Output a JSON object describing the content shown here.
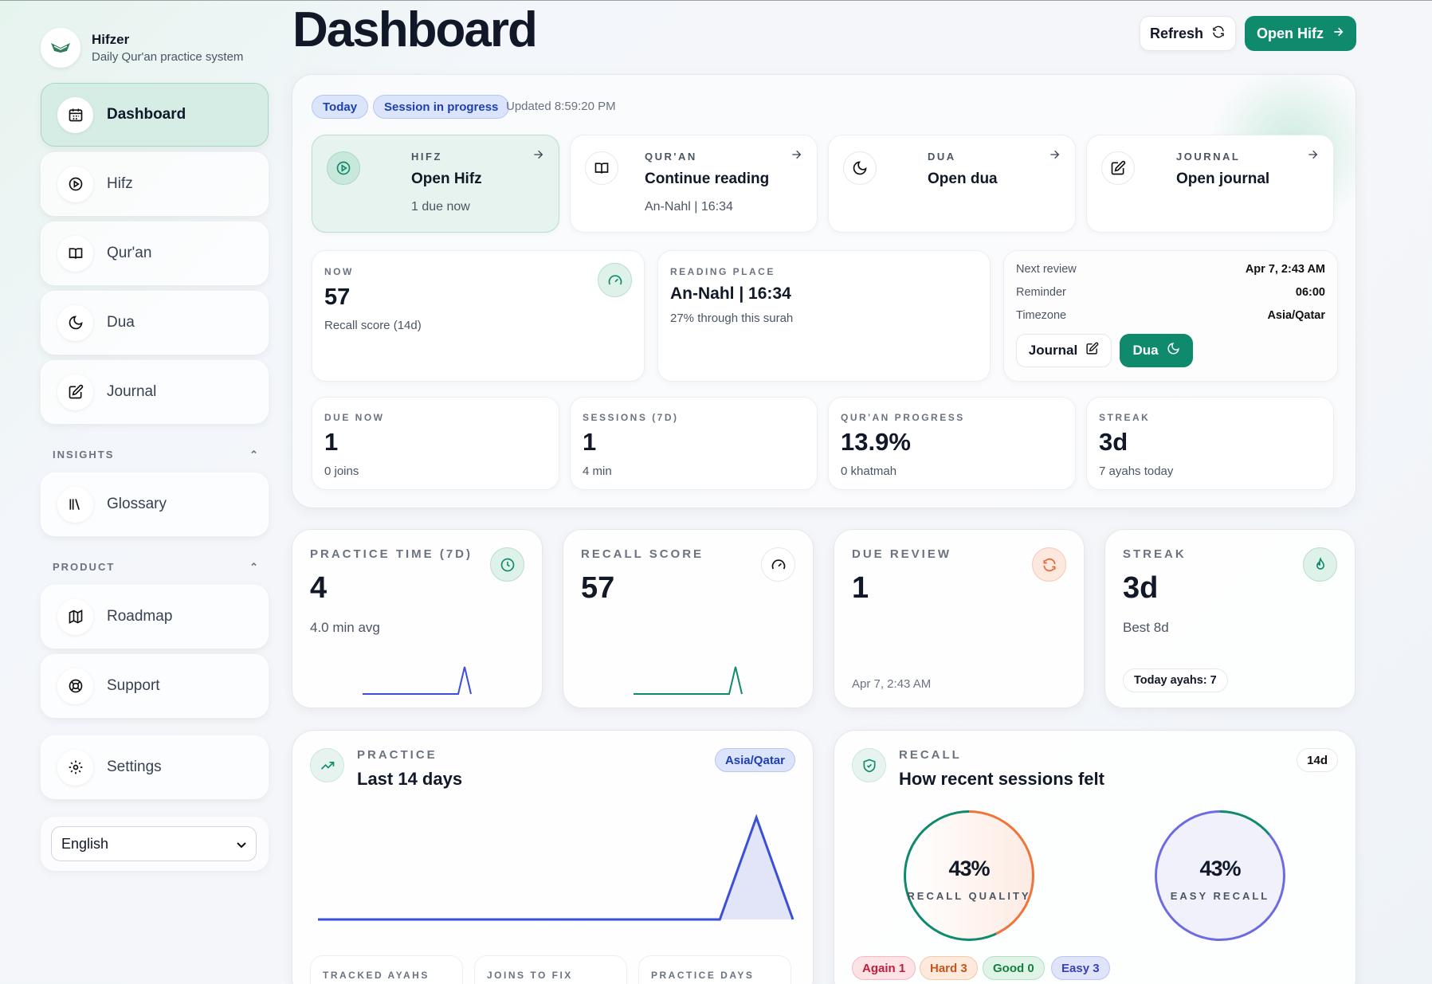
{
  "brand": {
    "name": "Hifzer",
    "tagline": "Daily Qur'an practice system"
  },
  "sidebar": {
    "items": [
      {
        "label": "Dashboard",
        "icon": "calendar-icon",
        "active": true
      },
      {
        "label": "Hifz",
        "icon": "play-circle-icon"
      },
      {
        "label": "Qur'an",
        "icon": "book-open-icon"
      },
      {
        "label": "Dua",
        "icon": "moon-icon"
      },
      {
        "label": "Journal",
        "icon": "edit-icon"
      }
    ],
    "insights_label": "INSIGHTS",
    "insights_items": [
      {
        "label": "Glossary",
        "icon": "library-icon"
      }
    ],
    "product_label": "PRODUCT",
    "product_items": [
      {
        "label": "Roadmap",
        "icon": "map-icon"
      },
      {
        "label": "Support",
        "icon": "lifebuoy-icon"
      }
    ],
    "settings_label": "Settings",
    "language": "English"
  },
  "header": {
    "title": "Dashboard",
    "refresh_label": "Refresh",
    "open_hifz_label": "Open Hifz"
  },
  "status": {
    "today": "Today",
    "session": "Session in progress",
    "updated": "Updated 8:59:20 PM"
  },
  "quick": [
    {
      "kicker": "HIFZ",
      "title": "Open Hifz",
      "sub": "1 due now"
    },
    {
      "kicker": "QUR'AN",
      "title": "Continue reading",
      "sub": "An-Nahl | 16:34"
    },
    {
      "kicker": "DUA",
      "title": "Open dua",
      "sub": ""
    },
    {
      "kicker": "JOURNAL",
      "title": "Open journal",
      "sub": ""
    }
  ],
  "now": {
    "kicker": "NOW",
    "value": "57",
    "sub": "Recall score (14d)"
  },
  "reading": {
    "kicker": "READING PLACE",
    "value": "An-Nahl | 16:34",
    "sub": "27% through this surah"
  },
  "schedule": {
    "next_review_label": "Next review",
    "next_review": "Apr 7, 2:43 AM",
    "reminder_label": "Reminder",
    "reminder": "06:00",
    "timezone_label": "Timezone",
    "timezone": "Asia/Qatar",
    "journal_btn": "Journal",
    "dua_btn": "Dua"
  },
  "stats": [
    {
      "kicker": "DUE NOW",
      "value": "1",
      "sub": "0 joins"
    },
    {
      "kicker": "SESSIONS (7D)",
      "value": "1",
      "sub": "4 min"
    },
    {
      "kicker": "QUR'AN PROGRESS",
      "value": "13.9%",
      "sub": "0 khatmah"
    },
    {
      "kicker": "STREAK",
      "value": "3d",
      "sub": "7 ayahs today"
    }
  ],
  "metrics": [
    {
      "kicker": "PRACTICE TIME (7D)",
      "value": "4",
      "sub": "4.0 min avg",
      "spark": [
        0,
        0,
        0,
        0,
        0,
        0,
        0,
        0,
        0,
        0,
        0,
        0,
        0,
        0,
        0,
        0,
        1,
        0
      ],
      "color": "#3b4fd8"
    },
    {
      "kicker": "RECALL SCORE",
      "value": "57",
      "sub": "",
      "spark": [
        0,
        0,
        0,
        0,
        0,
        0,
        0,
        0,
        0,
        0,
        0,
        0,
        0,
        0,
        0,
        0,
        1,
        0
      ],
      "color": "#0f8a6d"
    },
    {
      "kicker": "DUE REVIEW",
      "value": "1",
      "sub": "",
      "foot": "Apr 7, 2:43 AM"
    },
    {
      "kicker": "STREAK",
      "value": "3d",
      "sub": "Best 8d",
      "badge": "Today ayahs: 7"
    }
  ],
  "practice": {
    "kicker": "PRACTICE",
    "title": "Last 14 days",
    "tz": "Asia/Qatar",
    "bottom_kickers": [
      "TRACKED AYAHS",
      "JOINS TO FIX",
      "PRACTICE DAYS"
    ]
  },
  "chart_data": {
    "type": "area",
    "x": [
      1,
      2,
      3,
      4,
      5,
      6,
      7,
      8,
      9,
      10,
      11,
      12,
      13,
      14
    ],
    "values": [
      0,
      0,
      0,
      0,
      0,
      0,
      0,
      0,
      0,
      0,
      0,
      0,
      4,
      0
    ],
    "color": "#3b4fd8"
  },
  "recall": {
    "kicker": "RECALL",
    "title": "How recent sessions felt",
    "range": "14d",
    "quality_pct": "43%",
    "quality_label": "RECALL QUALITY",
    "easy_pct": "43%",
    "easy_label": "EASY RECALL",
    "pills": {
      "again": "Again 1",
      "hard": "Hard 3",
      "good": "Good 0",
      "easy": "Easy 3"
    }
  }
}
